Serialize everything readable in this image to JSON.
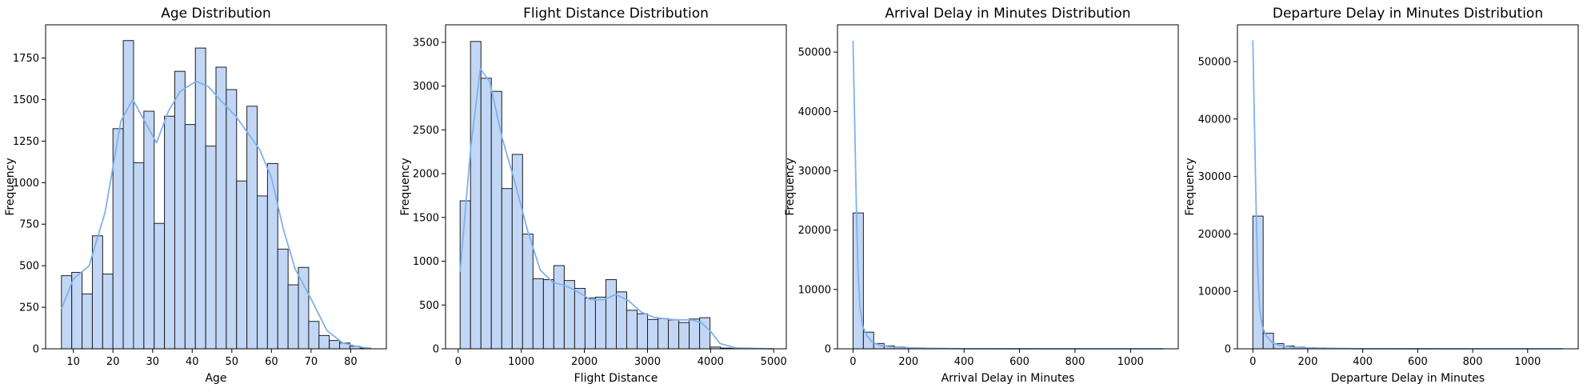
{
  "colors": {
    "bar_fill": "#c2d7f5",
    "bar_edge": "#1f1f1f",
    "kde": "#7fb1ee",
    "axis": "#000000"
  },
  "chart_data": [
    {
      "type": "bar",
      "title": "Age Distribution",
      "xlabel": "Age",
      "ylabel": "Frequency",
      "xlim": [
        3,
        89
      ],
      "ylim": [
        0,
        1950
      ],
      "xticks": [
        10,
        20,
        30,
        40,
        50,
        60,
        70,
        80
      ],
      "yticks": [
        0,
        250,
        500,
        750,
        1000,
        1250,
        1500,
        1750
      ],
      "bins": {
        "start": 7,
        "width": 2.6,
        "values": [
          440,
          460,
          330,
          680,
          450,
          1325,
          1855,
          1120,
          1430,
          755,
          1400,
          1670,
          1350,
          1810,
          1220,
          1695,
          1560,
          1010,
          1460,
          920,
          1115,
          600,
          385,
          490,
          165,
          80,
          50,
          35,
          15,
          5
        ]
      },
      "kde": [
        [
          7,
          240
        ],
        [
          10,
          420
        ],
        [
          14,
          500
        ],
        [
          18,
          820
        ],
        [
          22,
          1370
        ],
        [
          25,
          1500
        ],
        [
          28,
          1370
        ],
        [
          31,
          1240
        ],
        [
          34,
          1430
        ],
        [
          37,
          1550
        ],
        [
          41,
          1610
        ],
        [
          44,
          1580
        ],
        [
          47,
          1500
        ],
        [
          51,
          1400
        ],
        [
          54,
          1300
        ],
        [
          57,
          1200
        ],
        [
          60,
          1030
        ],
        [
          63,
          720
        ],
        [
          66,
          480
        ],
        [
          70,
          300
        ],
        [
          74,
          110
        ],
        [
          78,
          35
        ],
        [
          82,
          12
        ],
        [
          85,
          3
        ]
      ]
    },
    {
      "type": "bar",
      "title": "Flight Distance Distribution",
      "xlabel": "Flight Distance",
      "ylabel": "Frequency",
      "xlim": [
        -200,
        5200
      ],
      "ylim": [
        0,
        3700
      ],
      "xticks": [
        0,
        1000,
        2000,
        3000,
        4000,
        5000
      ],
      "yticks": [
        0,
        500,
        1000,
        1500,
        2000,
        2500,
        3000,
        3500
      ],
      "bins": {
        "start": 31,
        "width": 165,
        "values": [
          1690,
          3510,
          3090,
          2940,
          1830,
          2220,
          1310,
          800,
          790,
          950,
          780,
          690,
          580,
          590,
          790,
          650,
          440,
          400,
          335,
          345,
          330,
          300,
          340,
          355,
          20,
          8,
          4,
          2,
          1,
          1
        ]
      },
      "kde": [
        [
          31,
          880
        ],
        [
          200,
          2300
        ],
        [
          350,
          3200
        ],
        [
          500,
          3050
        ],
        [
          700,
          2400
        ],
        [
          900,
          1900
        ],
        [
          1100,
          1350
        ],
        [
          1300,
          900
        ],
        [
          1500,
          760
        ],
        [
          1700,
          720
        ],
        [
          1900,
          650
        ],
        [
          2100,
          560
        ],
        [
          2300,
          560
        ],
        [
          2500,
          620
        ],
        [
          2700,
          550
        ],
        [
          2900,
          420
        ],
        [
          3100,
          360
        ],
        [
          3300,
          340
        ],
        [
          3500,
          330
        ],
        [
          3700,
          330
        ],
        [
          3850,
          300
        ],
        [
          4000,
          200
        ],
        [
          4150,
          60
        ],
        [
          4400,
          10
        ],
        [
          4983,
          0
        ]
      ]
    },
    {
      "type": "bar",
      "title": "Arrival Delay in Minutes Distribution",
      "xlabel": "Arrival Delay in Minutes",
      "ylabel": "Frequency",
      "xlim": [
        -56,
        1172
      ],
      "ylim": [
        0,
        54600
      ],
      "xticks": [
        0,
        200,
        400,
        600,
        800,
        1000
      ],
      "yticks": [
        0,
        10000,
        20000,
        30000,
        40000,
        50000
      ],
      "bins": {
        "start": 0,
        "width": 37.3,
        "values": [
          22900,
          2800,
          900,
          500,
          300,
          200,
          150,
          100,
          80,
          60,
          40,
          30,
          20,
          15,
          10,
          8,
          6,
          5,
          4,
          3,
          2,
          2,
          1,
          1,
          1,
          1,
          1,
          1,
          1,
          1
        ]
      },
      "kde": [
        [
          0,
          51900
        ],
        [
          6,
          38000
        ],
        [
          12,
          24000
        ],
        [
          18,
          13000
        ],
        [
          25,
          7000
        ],
        [
          35,
          3800
        ],
        [
          50,
          2200
        ],
        [
          70,
          1100
        ],
        [
          100,
          550
        ],
        [
          150,
          250
        ],
        [
          250,
          90
        ],
        [
          400,
          20
        ],
        [
          600,
          6
        ],
        [
          800,
          3
        ],
        [
          1000,
          1
        ],
        [
          1118,
          0
        ]
      ]
    },
    {
      "type": "bar",
      "title": "Departure Delay in Minutes Distribution",
      "xlabel": "Departure Delay in Minutes",
      "ylabel": "Frequency",
      "xlim": [
        -56,
        1184
      ],
      "ylim": [
        0,
        56400
      ],
      "xticks": [
        0,
        200,
        400,
        600,
        800,
        1000
      ],
      "yticks": [
        0,
        10000,
        20000,
        30000,
        40000,
        50000
      ],
      "bins": {
        "start": 0,
        "width": 37.6,
        "values": [
          23100,
          2700,
          900,
          500,
          300,
          200,
          150,
          100,
          80,
          60,
          40,
          30,
          20,
          15,
          10,
          8,
          6,
          5,
          4,
          3,
          2,
          2,
          1,
          1,
          1,
          1,
          1,
          1,
          1,
          1
        ]
      },
      "kde": [
        [
          0,
          53700
        ],
        [
          6,
          39000
        ],
        [
          12,
          24500
        ],
        [
          18,
          13200
        ],
        [
          25,
          7000
        ],
        [
          35,
          3800
        ],
        [
          50,
          2200
        ],
        [
          70,
          1100
        ],
        [
          100,
          550
        ],
        [
          150,
          250
        ],
        [
          250,
          90
        ],
        [
          400,
          20
        ],
        [
          600,
          6
        ],
        [
          800,
          3
        ],
        [
          1000,
          1
        ],
        [
          1128,
          0
        ]
      ]
    }
  ]
}
